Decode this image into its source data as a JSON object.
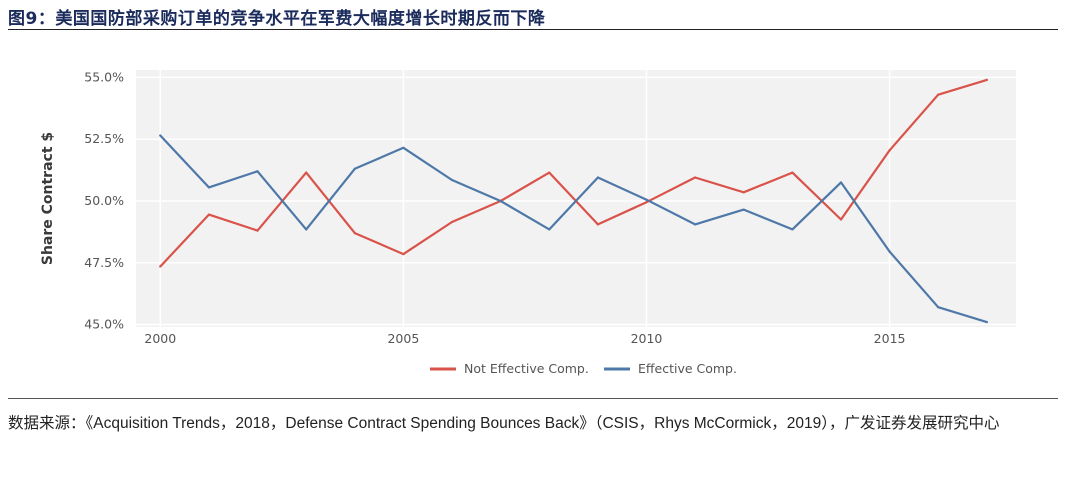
{
  "figure": {
    "title": "图9：美国国防部采购订单的竞争水平在军费大幅度增长时期反而下降",
    "source": "数据来源：《Acquisition Trends，2018，Defense Contract Spending Bounces Back》（CSIS，Rhys McCormick，2019），广发证券发展研究中心"
  },
  "colors": {
    "not_effective": "#d9534a",
    "effective": "#4e78a8",
    "plot_bg": "#f2f2f2"
  },
  "chart_data": {
    "type": "line",
    "title": "",
    "xlabel": "",
    "ylabel": "Share Contract $",
    "x": [
      2000,
      2001,
      2002,
      2003,
      2004,
      2005,
      2006,
      2007,
      2008,
      2009,
      2010,
      2011,
      2012,
      2013,
      2014,
      2015,
      2016,
      2017
    ],
    "xlim": [
      1999.5,
      2017.6
    ],
    "ylim": [
      44.9,
      55.3
    ],
    "xticks": [
      {
        "value": 2000,
        "label": "2000"
      },
      {
        "value": 2005,
        "label": "2005"
      },
      {
        "value": 2010,
        "label": "2010"
      },
      {
        "value": 2015,
        "label": "2015"
      }
    ],
    "yticks": [
      {
        "value": 45.0,
        "label": "45.0%"
      },
      {
        "value": 47.5,
        "label": "47.5%"
      },
      {
        "value": 50.0,
        "label": "50.0%"
      },
      {
        "value": 52.5,
        "label": "52.5%"
      },
      {
        "value": 55.0,
        "label": "55.0%"
      }
    ],
    "legend_position": "bottom-center",
    "series": [
      {
        "name": "Not Effective Comp.",
        "color": "#d9534a",
        "values": [
          47.35,
          49.45,
          48.8,
          51.15,
          48.7,
          47.85,
          49.15,
          50.0,
          51.15,
          49.05,
          49.95,
          50.95,
          50.35,
          51.15,
          49.25,
          52.05,
          54.3,
          54.9
        ]
      },
      {
        "name": "Effective Comp.",
        "color": "#4e78a8",
        "values": [
          52.65,
          50.55,
          51.2,
          48.85,
          51.3,
          52.15,
          50.85,
          50.0,
          48.85,
          50.95,
          50.05,
          49.05,
          49.65,
          48.85,
          50.75,
          47.95,
          45.7,
          45.1
        ]
      }
    ]
  }
}
